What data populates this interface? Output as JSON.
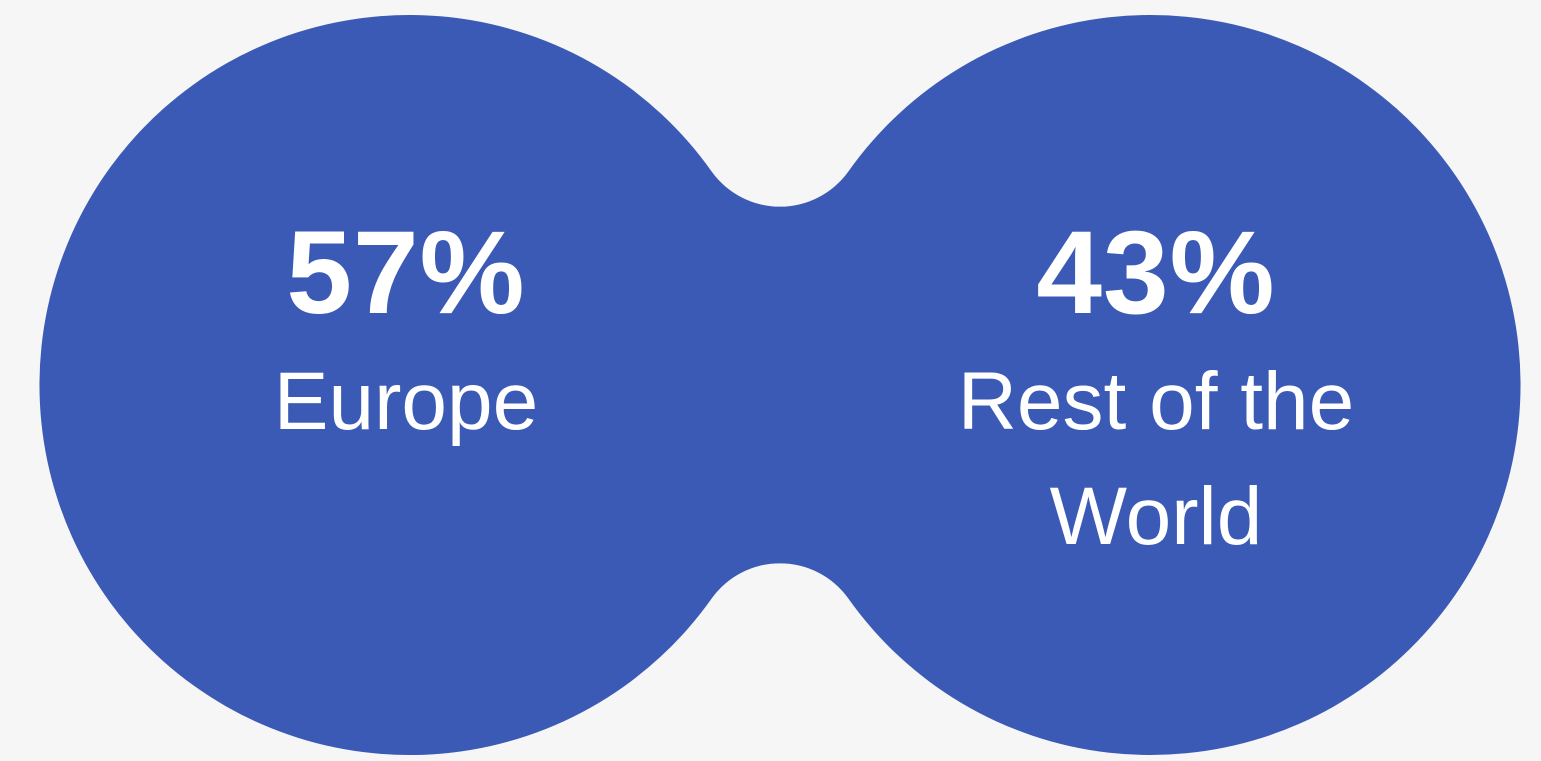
{
  "colors": {
    "background": "#f6f6f6",
    "shape_fill": "#3b5ab5",
    "text": "#ffffff"
  },
  "stats": [
    {
      "value": "57%",
      "label": "Europe"
    },
    {
      "value": "43%",
      "label": "Rest of the World"
    }
  ]
}
